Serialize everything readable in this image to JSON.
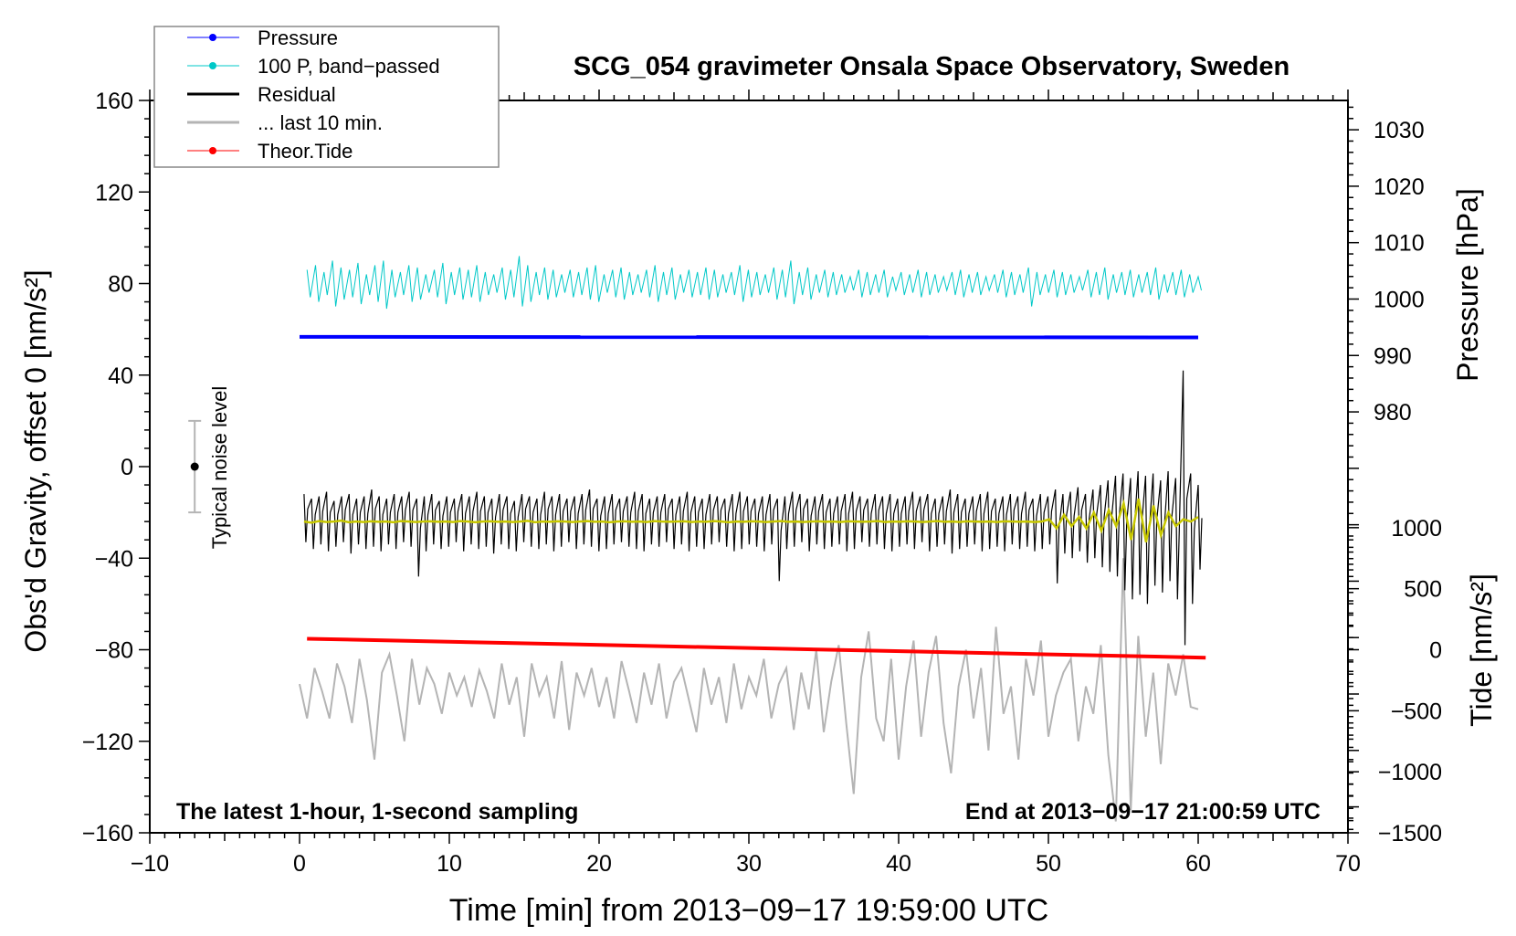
{
  "chart_data": {
    "type": "line",
    "title": "SCG_054 gravimeter Onsala Space Observatory, Sweden",
    "xlabel": "Time [min] from 2013−09−17 19:59:00 UTC",
    "ylabel_left": "Obs'd Gravity, offset 0 [nm/s²]",
    "ylabel_pressure": "Pressure [hPa]",
    "ylabel_tide": "Tide [nm/s²]",
    "xlim": [
      -10,
      70
    ],
    "ylim": [
      -160,
      160
    ],
    "pressure_lim": [
      905.4,
      1035.2
    ],
    "tide_lim": [
      -1500,
      4500
    ],
    "xticks": [
      "−10",
      "0",
      "10",
      "20",
      "30",
      "40",
      "50",
      "60",
      "70"
    ],
    "xtick_values": [
      -10,
      0,
      10,
      20,
      30,
      40,
      50,
      60,
      70
    ],
    "yticks": [
      "−160",
      "−120",
      "−80",
      "−40",
      "0",
      "40",
      "80",
      "120",
      "160"
    ],
    "ytick_values": [
      -160,
      -120,
      -80,
      -40,
      0,
      40,
      80,
      120,
      160
    ],
    "pressure_ticks": [
      "980",
      "990",
      "1000",
      "1010",
      "1020",
      "1030"
    ],
    "pressure_tick_values": [
      980,
      990,
      1000,
      1010,
      1020,
      1030
    ],
    "tide_ticks": [
      "−1500",
      "−1000",
      "−500",
      "0",
      "500",
      "1000"
    ],
    "tide_tick_values": [
      -1500,
      -1000,
      -500,
      0,
      500,
      1000
    ],
    "annotation_left": "The latest 1-hour, 1-second sampling",
    "annotation_right": "End at 2013−09−17 21:00:59 UTC",
    "noise_label": "Typical noise level",
    "noise_bar": {
      "x": -7,
      "center": 0,
      "half_range": 20
    },
    "legend": [
      {
        "label": "Pressure",
        "color": "#0000ff",
        "marker": true
      },
      {
        "label": "100 P, band−passed",
        "color": "#00c8c8",
        "marker": true
      },
      {
        "label": "Residual",
        "color": "#000000",
        "marker": false
      },
      {
        "label": "... last 10 min.",
        "color": "#b4b4b4",
        "marker": false
      },
      {
        "label": "Theor.Tide",
        "color": "#ff0000",
        "marker": true
      }
    ],
    "series": {
      "pressure": {
        "name": "Pressure",
        "color": "#0000ff",
        "unit": "hPa",
        "x": [
          0,
          60
        ],
        "values": [
          993.3,
          993.2
        ]
      },
      "tide": {
        "name": "Theor.Tide",
        "color": "#ff0000",
        "unit": "nm/s2",
        "x": [
          0.5,
          60.5
        ],
        "values": [
          90,
          -65
        ]
      },
      "bandpassed": {
        "name": "100 P, band-passed",
        "color": "#00c8c8",
        "x_range": [
          0.5,
          60
        ],
        "max": [
          86,
          88,
          85,
          90,
          87,
          86,
          89,
          84,
          88,
          90,
          86,
          85,
          88,
          87,
          84,
          86,
          89,
          85,
          87,
          86,
          88,
          85,
          84,
          87,
          86,
          92,
          88,
          85,
          87,
          86,
          84,
          86,
          85,
          87,
          88,
          84,
          86,
          87,
          85,
          84,
          86,
          88,
          85,
          87,
          84,
          86,
          85,
          87,
          86,
          84,
          85,
          88,
          86,
          85,
          84,
          87,
          86,
          90,
          85,
          87,
          84,
          86,
          85,
          84,
          83,
          86,
          85,
          84,
          86,
          83,
          85,
          84,
          86,
          85,
          84,
          83,
          85,
          86,
          84,
          85,
          83,
          84,
          86,
          85,
          84,
          87,
          85,
          84,
          86,
          85,
          84,
          83,
          86,
          85,
          87,
          84,
          85,
          86,
          84,
          85,
          87,
          84,
          85,
          86,
          84,
          83
        ],
        "min": [
          74,
          72,
          75,
          70,
          73,
          74,
          71,
          75,
          72,
          69,
          74,
          75,
          72,
          73,
          76,
          74,
          71,
          75,
          73,
          74,
          72,
          75,
          76,
          73,
          74,
          70,
          72,
          75,
          73,
          74,
          76,
          74,
          75,
          73,
          72,
          76,
          74,
          73,
          75,
          76,
          74,
          72,
          75,
          73,
          76,
          74,
          75,
          73,
          74,
          76,
          75,
          72,
          74,
          75,
          76,
          73,
          74,
          71,
          75,
          73,
          76,
          74,
          75,
          76,
          77,
          74,
          75,
          76,
          74,
          77,
          75,
          76,
          74,
          75,
          76,
          77,
          75,
          74,
          76,
          75,
          77,
          76,
          74,
          75,
          76,
          70,
          75,
          76,
          74,
          75,
          76,
          77,
          74,
          75,
          73,
          76,
          75,
          74,
          76,
          75,
          73,
          76,
          75,
          74,
          76,
          77
        ]
      },
      "residual": {
        "name": "Residual",
        "color": "#000000",
        "x_range": [
          0.3,
          60
        ],
        "max": [
          -12,
          -14,
          -13,
          -11,
          -15,
          -13,
          -12,
          -14,
          -13,
          -10,
          -13,
          -14,
          -12,
          -13,
          -11,
          -14,
          -13,
          -12,
          -15,
          -13,
          -14,
          -12,
          -13,
          -11,
          -13,
          -14,
          -12,
          -13,
          -15,
          -12,
          -13,
          -14,
          -11,
          -13,
          -12,
          -14,
          -13,
          -12,
          -10,
          -14,
          -13,
          -12,
          -14,
          -13,
          -11,
          -12,
          -14,
          -13,
          -12,
          -14,
          -13,
          -11,
          -13,
          -14,
          -12,
          -13,
          -14,
          -12,
          -11,
          -13,
          -14,
          -13,
          -12,
          -14,
          -13,
          -11,
          -12,
          -14,
          -13,
          -12,
          -14,
          -13,
          -12,
          -11,
          -13,
          -14,
          -12,
          -13,
          -12,
          -14,
          -13,
          -11,
          -13,
          -12,
          -14,
          -13,
          -10,
          -12,
          -14,
          -13,
          -12,
          -11,
          -14,
          -13,
          -12,
          -13,
          -11,
          -14,
          -12,
          -13,
          -10,
          -12,
          -11,
          -9,
          -12,
          -10,
          -8,
          -6,
          -4,
          -3,
          -5,
          -2,
          -4,
          -3,
          -6,
          -2,
          -5,
          42,
          -3,
          -8
        ],
        "min": [
          -33,
          -36,
          -34,
          -37,
          -35,
          -33,
          -38,
          -34,
          -36,
          -35,
          -37,
          -34,
          -36,
          -33,
          -35,
          -48,
          -37,
          -34,
          -36,
          -35,
          -33,
          -37,
          -34,
          -36,
          -35,
          -38,
          -34,
          -36,
          -37,
          -33,
          -35,
          -36,
          -34,
          -37,
          -35,
          -33,
          -36,
          -34,
          -35,
          -37,
          -36,
          -34,
          -33,
          -35,
          -36,
          -37,
          -34,
          -35,
          -33,
          -36,
          -34,
          -37,
          -35,
          -36,
          -34,
          -33,
          -35,
          -37,
          -36,
          -34,
          -35,
          -37,
          -34,
          -50,
          -36,
          -35,
          -33,
          -37,
          -34,
          -36,
          -35,
          -34,
          -37,
          -36,
          -33,
          -35,
          -34,
          -36,
          -37,
          -35,
          -34,
          -36,
          -33,
          -37,
          -35,
          -34,
          -38,
          -36,
          -35,
          -34,
          -37,
          -36,
          -35,
          -37,
          -34,
          -36,
          -35,
          -37,
          -36,
          -34,
          -51,
          -38,
          -40,
          -37,
          -42,
          -40,
          -44,
          -46,
          -48,
          -54,
          -58,
          -56,
          -60,
          -52,
          -55,
          -50,
          -58,
          -78,
          -60,
          -45
        ]
      },
      "residual_smoothed": {
        "color": "#c8c800",
        "x_range": [
          0.3,
          60
        ],
        "values": [
          -24,
          -24.5,
          -23.8,
          -24.2,
          -24,
          -23.6,
          -24.3,
          -24,
          -24.2,
          -23.9,
          -24.1,
          -24,
          -24.3,
          -23.8,
          -24,
          -24.2,
          -24,
          -23.9,
          -24.1,
          -24,
          -24.2,
          -23.8,
          -24,
          -24.3,
          -24,
          -23.9,
          -24.1,
          -24,
          -24.2,
          -24,
          -23.7,
          -24.3,
          -24,
          -24.1,
          -23.9,
          -24,
          -24.2,
          -24,
          -23.8,
          -24.1,
          -24,
          -24.3,
          -24,
          -23.9,
          -24.1,
          -24,
          -24.2,
          -23.8,
          -24,
          -24.1,
          -24,
          -23.9,
          -24.2,
          -24,
          -24.1,
          -23.8,
          -24,
          -24.3,
          -24,
          -24.1,
          -23.9,
          -24,
          -24.2,
          -24,
          -23.8,
          -24.1,
          -24,
          -24.2,
          -24,
          -23.9,
          -24.1,
          -24,
          -24.2,
          -23.9,
          -24,
          -24.1,
          -24,
          -23.8,
          -24.2,
          -24,
          -24.1,
          -23.9,
          -24,
          -24.2,
          -24,
          -23.8,
          -24.1,
          -24,
          -24.2,
          -23.9,
          -24,
          -24.1,
          -24,
          -24.2,
          -23.9,
          -24,
          -24.1,
          -24,
          -24.2,
          -24,
          -23,
          -27,
          -21,
          -26,
          -22,
          -27,
          -20,
          -28,
          -19,
          -26,
          -16,
          -32,
          -14,
          -33,
          -17,
          -30,
          -20,
          -26,
          -23,
          -24,
          -22
        ]
      },
      "last10min": {
        "name": "... last 10 min.",
        "color": "#b4b4b4",
        "x_range": [
          0,
          60
        ],
        "values": [
          -95,
          -110,
          -88,
          -98,
          -110,
          -86,
          -96,
          -112,
          -84,
          -102,
          -128,
          -90,
          -82,
          -100,
          -120,
          -84,
          -104,
          -88,
          -95,
          -108,
          -90,
          -100,
          -92,
          -105,
          -89,
          -98,
          -110,
          -86,
          -104,
          -92,
          -118,
          -86,
          -100,
          -92,
          -110,
          -85,
          -115,
          -90,
          -100,
          -88,
          -105,
          -92,
          -110,
          -85,
          -98,
          -112,
          -90,
          -104,
          -86,
          -110,
          -94,
          -88,
          -102,
          -116,
          -88,
          -104,
          -92,
          -112,
          -86,
          -106,
          -92,
          -100,
          -84,
          -110,
          -95,
          -88,
          -115,
          -90,
          -106,
          -80,
          -116,
          -94,
          -78,
          -112,
          -143,
          -92,
          -72,
          -110,
          -120,
          -84,
          -128,
          -96,
          -76,
          -118,
          -90,
          -74,
          -112,
          -134,
          -96,
          -80,
          -110,
          -88,
          -124,
          -70,
          -108,
          -96,
          -128,
          -84,
          -100,
          -76,
          -118,
          -100,
          -90,
          -84,
          -120,
          -96,
          -108,
          -78,
          -126,
          -155,
          -40,
          -150,
          -74,
          -118,
          -90,
          -130,
          -86,
          -100,
          -82,
          -105,
          -106
        ]
      }
    }
  }
}
